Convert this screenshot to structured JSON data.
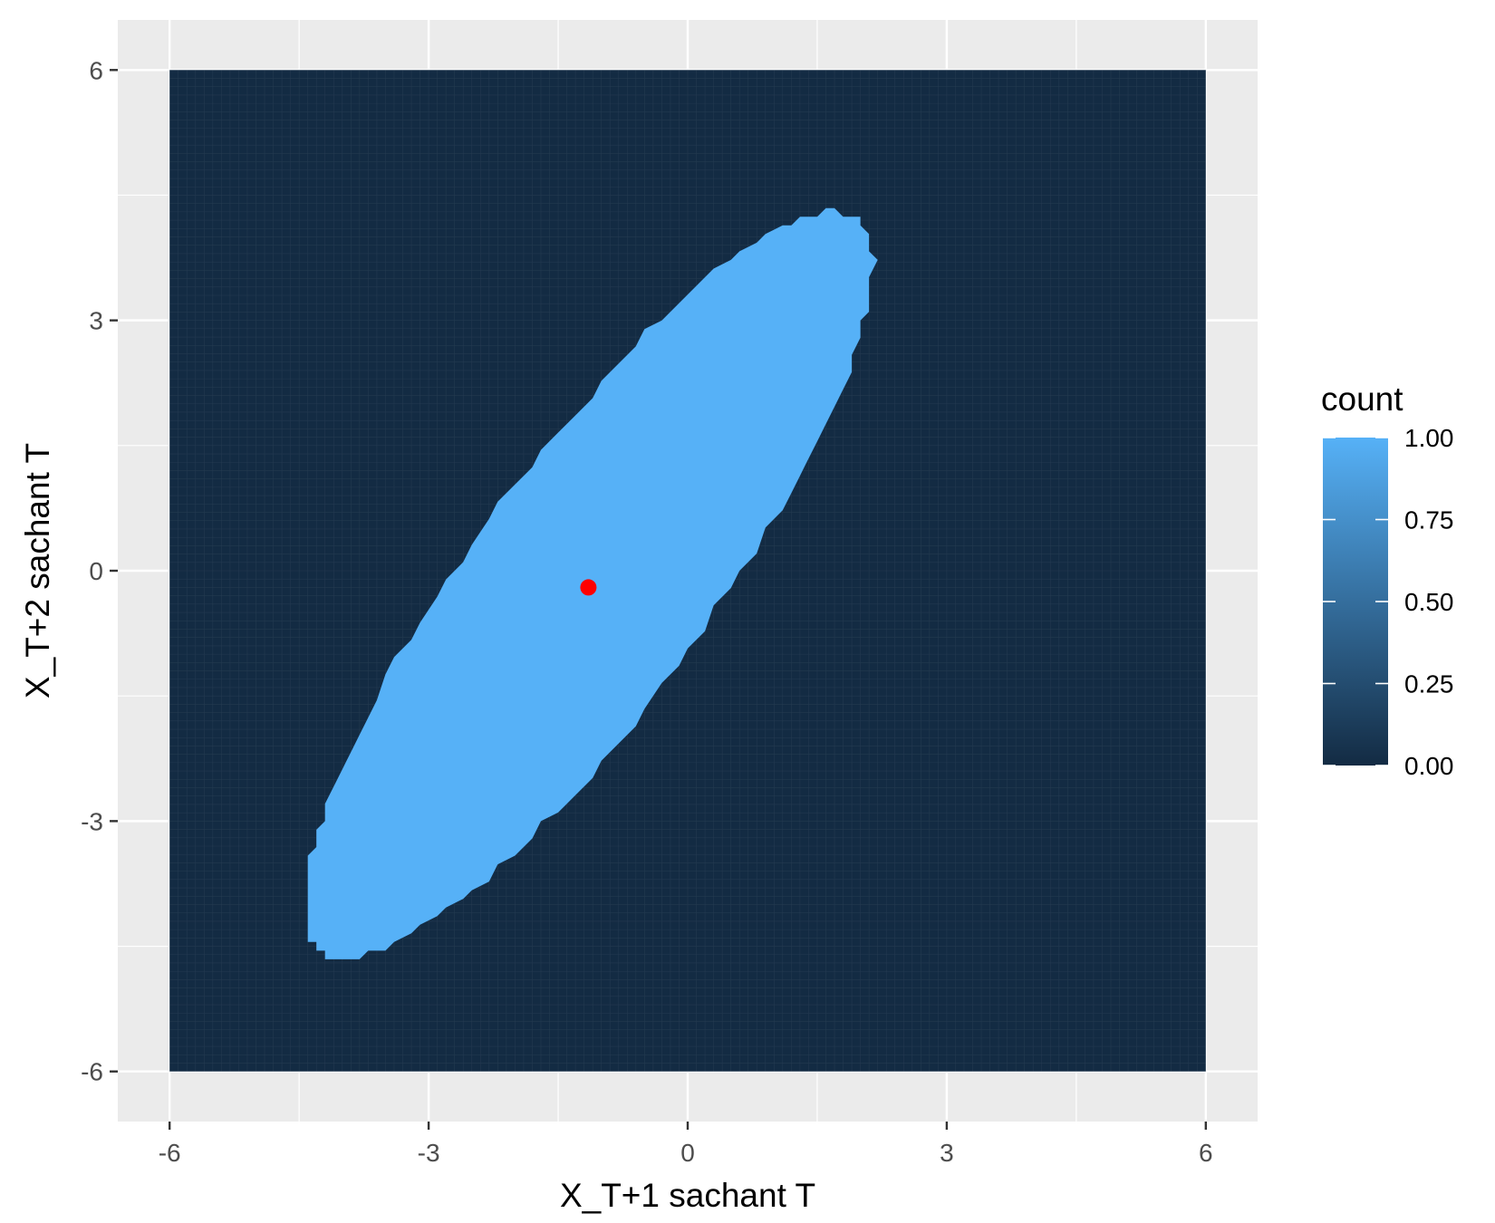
{
  "chart_data": {
    "type": "heatmap",
    "xlabel": "X_T+1 sachant T",
    "ylabel": "X_T+2 sachant T",
    "xlim": [
      -6.6,
      6.6
    ],
    "ylim": [
      -6.6,
      6.6
    ],
    "tile_range": [
      -6,
      6
    ],
    "grid_resolution": 0.1,
    "x_ticks": [
      "-6",
      "-3",
      "0",
      "3",
      "6"
    ],
    "y_ticks": [
      "6",
      "3",
      "0",
      "-3",
      "-6"
    ],
    "x_tick_values": [
      -6,
      -3,
      0,
      3,
      6
    ],
    "y_tick_values": [
      6,
      3,
      0,
      -3,
      -6
    ],
    "grid": true,
    "region": {
      "shape": "ellipse",
      "center": [
        -1.15,
        -0.2
      ],
      "bounds_x": [
        -4.45,
        2.15
      ],
      "bounds_y": [
        -4.65,
        4.3
      ],
      "value_inside": 1,
      "value_outside": 0
    },
    "point": {
      "x": -1.15,
      "y": -0.2,
      "color": "#ff0000"
    },
    "legend": {
      "title": "count",
      "position": "right",
      "labels": [
        "1.00",
        "0.75",
        "0.50",
        "0.25",
        "0.00"
      ],
      "values": [
        1.0,
        0.75,
        0.5,
        0.25,
        0.0
      ],
      "color_low": "#132b43",
      "color_high": "#56b1f7"
    },
    "panel_background": "#ebebeb",
    "grid_color": "#ffffff"
  }
}
